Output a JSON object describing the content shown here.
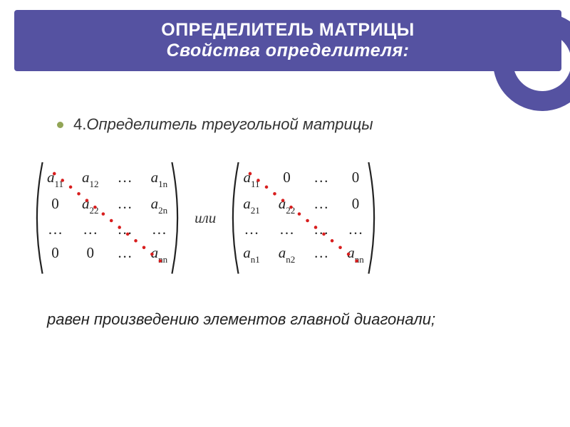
{
  "colors": {
    "band": "#5552a1",
    "bullet": "#92a556",
    "diag": "#d81e1e",
    "matrix_text": "#222222"
  },
  "header": {
    "line1": "ОПРЕДЕЛИТЕЛЬ  МАТРИЦЫ",
    "line2": "Свойства  определителя:"
  },
  "bullet": {
    "prefix": "4.",
    "text": "Определитель треугольной матрицы"
  },
  "connector": "или",
  "conclusion": "равен произведению элементов главной диагонали;",
  "matrix1": {
    "type": "matrix",
    "cols": 4,
    "rows": 4,
    "cells": [
      [
        {
          "a": "a",
          "s": "11"
        },
        {
          "a": "a",
          "s": "12"
        },
        {
          "plain": "…"
        },
        {
          "a": "a",
          "s": "1n"
        }
      ],
      [
        {
          "plain": "0"
        },
        {
          "a": "a",
          "s": "22"
        },
        {
          "plain": "…"
        },
        {
          "a": "a",
          "s": "2n"
        }
      ],
      [
        {
          "plain": "…"
        },
        {
          "plain": "…"
        },
        {
          "plain": "…"
        },
        {
          "plain": "…"
        }
      ],
      [
        {
          "plain": "0"
        },
        {
          "plain": "0"
        },
        {
          "plain": "…"
        },
        {
          "a": "a",
          "s": "nn"
        }
      ]
    ],
    "diagonal": {
      "dot_count": 14,
      "dot_radius": 2.3
    }
  },
  "matrix2": {
    "type": "matrix",
    "cols": 4,
    "rows": 4,
    "cells": [
      [
        {
          "a": "a",
          "s": "11"
        },
        {
          "plain": "0"
        },
        {
          "plain": "…"
        },
        {
          "plain": "0"
        }
      ],
      [
        {
          "a": "a",
          "s": "21"
        },
        {
          "a": "a",
          "s": "22"
        },
        {
          "plain": "…"
        },
        {
          "plain": "0"
        }
      ],
      [
        {
          "plain": "…"
        },
        {
          "plain": "…"
        },
        {
          "plain": "…"
        },
        {
          "plain": "…"
        }
      ],
      [
        {
          "a": "a",
          "s": "n1"
        },
        {
          "a": "a",
          "s": "n2"
        },
        {
          "plain": "…"
        },
        {
          "a": "a",
          "s": "nn"
        }
      ]
    ],
    "diagonal": {
      "dot_count": 14,
      "dot_radius": 2.3
    }
  }
}
